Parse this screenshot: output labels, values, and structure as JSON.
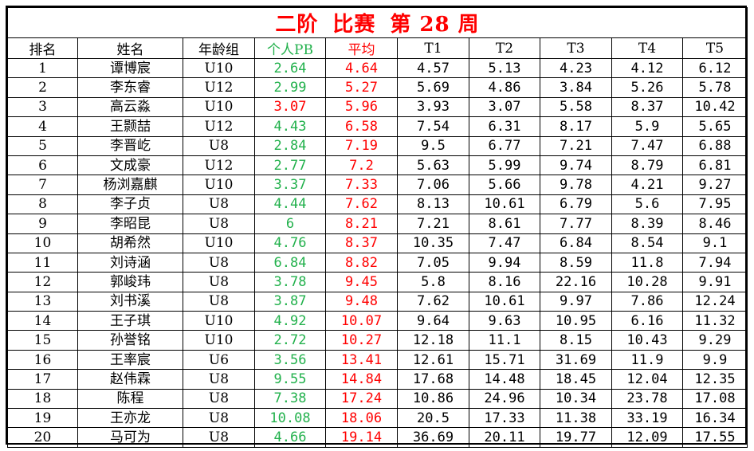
{
  "title": {
    "part1": "二阶",
    "part2": "比赛",
    "part3": "第 28 周"
  },
  "headers": {
    "rank": "排名",
    "name": "姓名",
    "age_group": "年龄组",
    "pb": "个人PB",
    "avg": "平均",
    "t1": "T1",
    "t2": "T2",
    "t3": "T3",
    "t4": "T4",
    "t5": "T5"
  },
  "colors": {
    "pb_green": "#22b14c",
    "red": "#ff0000"
  },
  "rows": [
    {
      "rank": "1",
      "name": "谭博宸",
      "age": "U10",
      "pb": "2.64",
      "pb_color": "green",
      "avg": "4.64",
      "t1": "4.57",
      "t2": "5.13",
      "t3": "4.23",
      "t4": "4.12",
      "t5": "6.12"
    },
    {
      "rank": "2",
      "name": "李东睿",
      "age": "U12",
      "pb": "2.99",
      "pb_color": "green",
      "avg": "5.27",
      "t1": "5.69",
      "t2": "4.86",
      "t3": "3.84",
      "t4": "5.26",
      "t5": "5.78"
    },
    {
      "rank": "3",
      "name": "高云淼",
      "age": "U10",
      "pb": "3.07",
      "pb_color": "red",
      "avg": "5.96",
      "t1": "3.93",
      "t2": "3.07",
      "t3": "5.58",
      "t4": "8.37",
      "t5": "10.42"
    },
    {
      "rank": "4",
      "name": "王颢喆",
      "age": "U12",
      "pb": "4.43",
      "pb_color": "green",
      "avg": "6.58",
      "t1": "7.54",
      "t2": "6.31",
      "t3": "8.17",
      "t4": "5.9",
      "t5": "5.65"
    },
    {
      "rank": "5",
      "name": "李晋屹",
      "age": "U8",
      "pb": "2.84",
      "pb_color": "green",
      "avg": "7.19",
      "t1": "9.5",
      "t2": "6.77",
      "t3": "7.21",
      "t4": "7.47",
      "t5": "6.88"
    },
    {
      "rank": "6",
      "name": "文成豪",
      "age": "U12",
      "pb": "2.77",
      "pb_color": "green",
      "avg": "7.2",
      "t1": "5.63",
      "t2": "5.99",
      "t3": "9.74",
      "t4": "8.79",
      "t5": "6.81"
    },
    {
      "rank": "7",
      "name": "杨浏嘉麒",
      "age": "U10",
      "pb": "3.37",
      "pb_color": "green",
      "avg": "7.33",
      "t1": "7.06",
      "t2": "5.66",
      "t3": "9.78",
      "t4": "4.21",
      "t5": "9.27"
    },
    {
      "rank": "8",
      "name": "李子贞",
      "age": "U8",
      "pb": "4.44",
      "pb_color": "green",
      "avg": "7.62",
      "t1": "8.13",
      "t2": "10.61",
      "t3": "6.79",
      "t4": "5.6",
      "t5": "7.95"
    },
    {
      "rank": "9",
      "name": "李昭昆",
      "age": "U8",
      "pb": "6",
      "pb_color": "green",
      "avg": "8.21",
      "t1": "7.21",
      "t2": "8.61",
      "t3": "7.77",
      "t4": "8.39",
      "t5": "8.46"
    },
    {
      "rank": "10",
      "name": "胡希然",
      "age": "U10",
      "pb": "4.76",
      "pb_color": "green",
      "avg": "8.37",
      "t1": "10.35",
      "t2": "7.47",
      "t3": "6.84",
      "t4": "8.54",
      "t5": "9.1"
    },
    {
      "rank": "11",
      "name": "刘诗涵",
      "age": "U8",
      "pb": "6.84",
      "pb_color": "green",
      "avg": "8.82",
      "t1": "7.05",
      "t2": "9.94",
      "t3": "8.59",
      "t4": "11.8",
      "t5": "7.94"
    },
    {
      "rank": "12",
      "name": "郭峻玮",
      "age": "U8",
      "pb": "3.78",
      "pb_color": "green",
      "avg": "9.45",
      "t1": "5.8",
      "t2": "8.16",
      "t3": "22.16",
      "t4": "10.28",
      "t5": "9.91"
    },
    {
      "rank": "13",
      "name": "刘书溪",
      "age": "U8",
      "pb": "3.87",
      "pb_color": "green",
      "avg": "9.48",
      "t1": "7.62",
      "t2": "10.61",
      "t3": "9.97",
      "t4": "7.86",
      "t5": "12.24"
    },
    {
      "rank": "14",
      "name": "王子琪",
      "age": "U10",
      "pb": "4.92",
      "pb_color": "green",
      "avg": "10.07",
      "t1": "9.64",
      "t2": "9.63",
      "t3": "10.95",
      "t4": "6.16",
      "t5": "11.32"
    },
    {
      "rank": "15",
      "name": "孙誉铭",
      "age": "U10",
      "pb": "2.72",
      "pb_color": "green",
      "avg": "10.27",
      "t1": "12.18",
      "t2": "11.1",
      "t3": "8.15",
      "t4": "10.43",
      "t5": "9.29"
    },
    {
      "rank": "16",
      "name": "王率宸",
      "age": "U6",
      "pb": "3.56",
      "pb_color": "green",
      "avg": "13.41",
      "t1": "12.61",
      "t2": "15.71",
      "t3": "31.69",
      "t4": "11.9",
      "t5": "9.9"
    },
    {
      "rank": "17",
      "name": "赵伟霖",
      "age": "U8",
      "pb": "9.55",
      "pb_color": "green",
      "avg": "14.84",
      "t1": "17.68",
      "t2": "14.48",
      "t3": "18.45",
      "t4": "12.04",
      "t5": "12.35"
    },
    {
      "rank": "18",
      "name": "陈程",
      "age": "U8",
      "pb": "7.38",
      "pb_color": "green",
      "avg": "17.24",
      "t1": "10.86",
      "t2": "24.96",
      "t3": "10.34",
      "t4": "23.78",
      "t5": "17.08"
    },
    {
      "rank": "19",
      "name": "王亦龙",
      "age": "U8",
      "pb": "10.08",
      "pb_color": "green",
      "avg": "18.06",
      "t1": "20.5",
      "t2": "17.33",
      "t3": "11.38",
      "t4": "33.19",
      "t5": "16.34"
    },
    {
      "rank": "20",
      "name": "马可为",
      "age": "U8",
      "pb": "4.66",
      "pb_color": "green",
      "avg": "19.14",
      "t1": "36.69",
      "t2": "20.11",
      "t3": "19.77",
      "t4": "12.09",
      "t5": "17.55"
    }
  ]
}
